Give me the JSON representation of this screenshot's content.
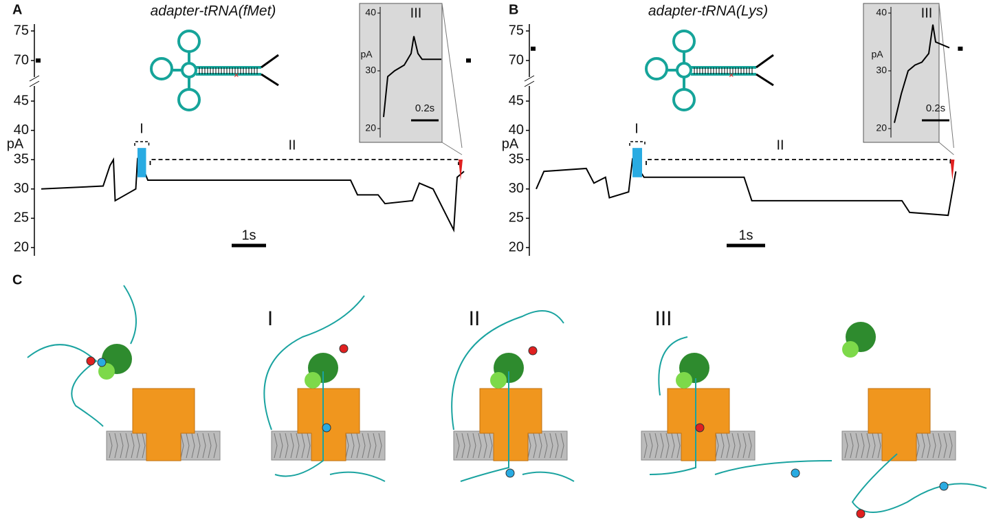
{
  "panels": [
    {
      "label": "A",
      "title": "adapter-tRNA(fMet)",
      "y_label": "pA",
      "yticks_upper": [
        70,
        75
      ],
      "yticks": [
        20,
        25,
        30,
        35,
        40,
        45
      ],
      "open_pore": 70,
      "regions": [
        "I",
        "II"
      ],
      "scale_bar": "1s",
      "trace": {
        "t": [
          0,
          1.8,
          2.0,
          2.1,
          2.15,
          2.6,
          2.75,
          2.8,
          3.0,
          3.1,
          9.0,
          9.2,
          9.8,
          10.0,
          10.8,
          11.0,
          11.4,
          12.0,
          12.1,
          12.3
        ],
        "pA": [
          30,
          30.5,
          34,
          35,
          28,
          29.5,
          30,
          35,
          33,
          31.5,
          31.5,
          29,
          29,
          27.5,
          28,
          31,
          30,
          23,
          32,
          33
        ]
      },
      "inset": {
        "y_label": "pA",
        "yticks": [
          20,
          30,
          40
        ],
        "region": "III",
        "scale_bar": "0.2s",
        "trace": {
          "t": [
            0,
            0.03,
            0.08,
            0.15,
            0.2,
            0.22,
            0.25,
            0.28,
            0.42
          ],
          "pA": [
            22,
            29,
            30,
            31,
            33,
            36,
            33,
            32,
            32
          ]
        }
      }
    },
    {
      "label": "B",
      "title": "adapter-tRNA(Lys)",
      "y_label": "pA",
      "yticks_upper": [
        70,
        75
      ],
      "yticks": [
        20,
        25,
        30,
        35,
        40,
        45
      ],
      "open_pore": 72,
      "regions": [
        "I",
        "II"
      ],
      "scale_bar": "1s",
      "trace": {
        "t": [
          0,
          0.2,
          1.3,
          1.5,
          1.8,
          1.9,
          2.4,
          2.5,
          2.8,
          5.4,
          5.6,
          9.5,
          9.7,
          10.7,
          10.9
        ],
        "pA": [
          30,
          33,
          33.5,
          31,
          32,
          28.5,
          29.5,
          35,
          32,
          32,
          28,
          28,
          26,
          25.5,
          33
        ]
      },
      "inset": {
        "y_label": "pA",
        "yticks": [
          20,
          30,
          40
        ],
        "region": "III",
        "scale_bar": "0.2s",
        "trace": {
          "t": [
            0,
            0.05,
            0.1,
            0.15,
            0.2,
            0.25,
            0.28,
            0.3,
            0.4
          ],
          "pA": [
            21,
            26,
            30,
            31,
            31.5,
            33,
            38,
            35,
            34
          ]
        }
      }
    }
  ],
  "panel_c": {
    "label": "C",
    "stages": [
      "I",
      "II",
      "III"
    ]
  }
}
